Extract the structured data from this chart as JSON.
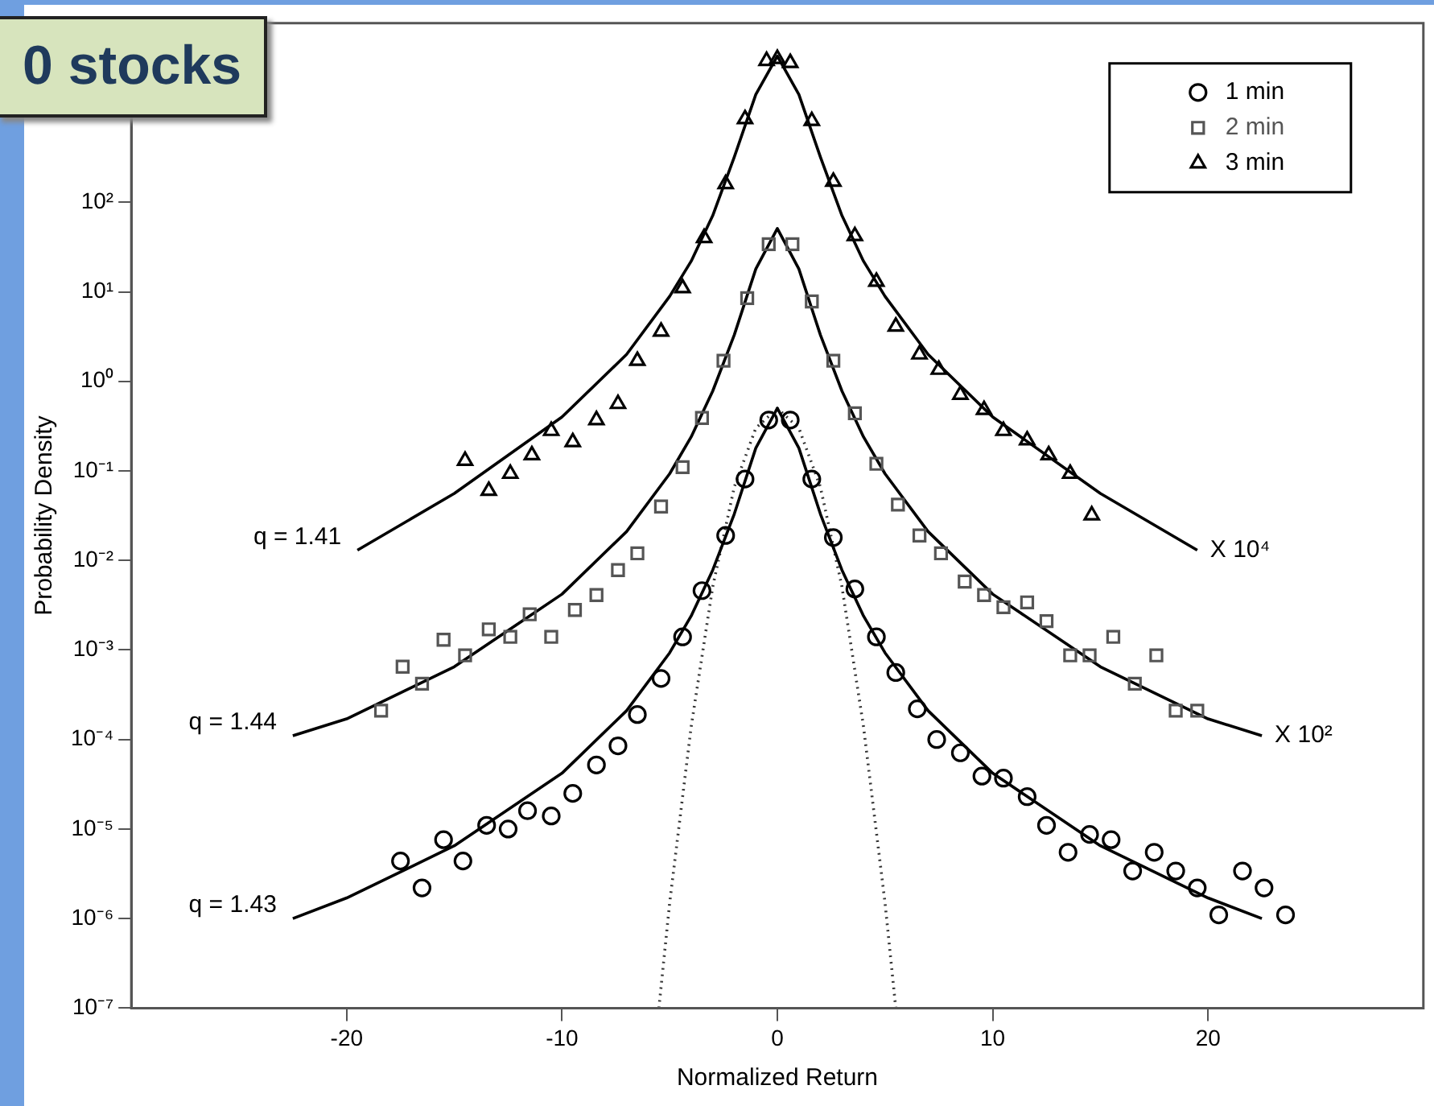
{
  "chart_data": {
    "type": "scatter",
    "title": "0 stocks",
    "xlabel": "Normalized Return",
    "ylabel": "Probability Density",
    "log": "y",
    "xlim": [
      -30,
      30
    ],
    "xticks": [
      -20,
      -10,
      0,
      10,
      20
    ],
    "ylim": [
      1e-07,
      10000
    ],
    "yticks": [
      {
        "value": 1e-07,
        "label": "10⁻⁷"
      },
      {
        "value": 1e-06,
        "label": "10⁻⁶"
      },
      {
        "value": 1e-05,
        "label": "10⁻⁵"
      },
      {
        "value": 0.0001,
        "label": "10⁻⁴"
      },
      {
        "value": 0.001,
        "label": "10⁻³"
      },
      {
        "value": 0.01,
        "label": "10⁻²"
      },
      {
        "value": 0.1,
        "label": "10⁻¹"
      },
      {
        "value": 1,
        "label": "10⁰"
      },
      {
        "value": 10,
        "label": "10¹"
      },
      {
        "value": 100,
        "label": "10²"
      }
    ],
    "grid": false,
    "legend": "top right",
    "series": [
      {
        "name": "1 min",
        "type": "scatter",
        "marker": "circle",
        "color": "#000000",
        "x": [
          -17.5,
          -16.5,
          -15.5,
          -14.6,
          -13.5,
          -12.5,
          -11.6,
          -10.5,
          -9.5,
          -8.4,
          -7.4,
          -6.5,
          -5.4,
          -4.4,
          -3.5,
          -2.4,
          -1.5,
          -0.4,
          0.6,
          1.6,
          2.6,
          3.6,
          4.6,
          5.5,
          6.5,
          7.4,
          8.5,
          9.5,
          10.5,
          11.6,
          12.5,
          13.5,
          14.5,
          15.5,
          16.5,
          17.5,
          18.5,
          19.5,
          20.5,
          21.6,
          22.6,
          23.6
        ],
        "values": [
          4.4e-06,
          2.2e-06,
          7.6e-06,
          4.4e-06,
          1.1e-05,
          1e-05,
          1.6e-05,
          1.4e-05,
          2.5e-05,
          5.2e-05,
          8.5e-05,
          0.00019,
          0.00048,
          0.0014,
          0.0046,
          0.019,
          0.081,
          0.37,
          0.37,
          0.081,
          0.018,
          0.0048,
          0.0014,
          0.00056,
          0.00022,
          0.0001,
          7.1e-05,
          3.9e-05,
          3.7e-05,
          2.3e-05,
          1.1e-05,
          5.5e-06,
          8.7e-06,
          7.6e-06,
          3.4e-06,
          5.5e-06,
          3.4e-06,
          2.2e-06,
          1.1e-06,
          3.4e-06,
          2.2e-06,
          1.1e-06
        ]
      },
      {
        "name": "2 min",
        "type": "scatter",
        "marker": "square",
        "color": "#555555",
        "x": [
          -18.4,
          -17.4,
          -16.5,
          -15.5,
          -14.5,
          -13.4,
          -12.4,
          -11.5,
          -10.5,
          -9.4,
          -8.4,
          -7.4,
          -6.5,
          -5.4,
          -4.4,
          -3.5,
          -2.5,
          -1.4,
          -0.4,
          0.7,
          1.6,
          2.6,
          3.6,
          4.6,
          5.6,
          6.6,
          7.6,
          8.7,
          9.6,
          10.5,
          11.6,
          12.5,
          13.6,
          14.5,
          15.6,
          16.6,
          17.6,
          18.5,
          19.5
        ],
        "values": [
          0.00021,
          0.00065,
          0.00042,
          0.0013,
          0.00087,
          0.0017,
          0.0014,
          0.0025,
          0.0014,
          0.0028,
          0.0041,
          0.0078,
          0.012,
          0.04,
          0.11,
          0.39,
          1.7,
          8.5,
          34,
          34,
          7.8,
          1.7,
          0.44,
          0.12,
          0.042,
          0.019,
          0.012,
          0.0058,
          0.0041,
          0.003,
          0.0034,
          0.0021,
          0.00087,
          0.00087,
          0.0014,
          0.00042,
          0.00087,
          0.00021,
          0.00021
        ]
      },
      {
        "name": "3 min",
        "type": "scatter",
        "marker": "triangle",
        "color": "#000000",
        "x": [
          -14.5,
          -13.4,
          -12.4,
          -11.4,
          -10.5,
          -9.5,
          -8.4,
          -7.4,
          -6.5,
          -5.4,
          -4.4,
          -3.4,
          -2.4,
          -1.5,
          -0.5,
          0,
          0.6,
          1.6,
          2.6,
          3.6,
          4.6,
          5.5,
          6.6,
          7.5,
          8.5,
          9.6,
          10.5,
          11.6,
          12.6,
          13.6,
          14.6
        ],
        "values": [
          0.13,
          0.06,
          0.093,
          0.15,
          0.28,
          0.21,
          0.37,
          0.56,
          1.7,
          3.6,
          11,
          40,
          160,
          850,
          3800,
          4000,
          3600,
          810,
          170,
          42,
          13,
          4.1,
          2.0,
          1.35,
          0.71,
          0.48,
          0.28,
          0.22,
          0.15,
          0.093,
          0.032
        ]
      },
      {
        "type": "line",
        "color": "#000000",
        "line_style": "solid",
        "x": [
          -22.5,
          -20,
          -15,
          -10,
          -7,
          -5,
          -4,
          -3,
          -2,
          -1,
          0,
          1,
          2,
          3,
          4,
          5,
          7,
          10,
          15,
          20,
          22.5
        ],
        "values": [
          1e-06,
          1.7e-06,
          6.5e-06,
          4.2e-05,
          0.00021,
          0.00093,
          0.0024,
          0.0078,
          0.033,
          0.18,
          0.5,
          0.18,
          0.033,
          0.0078,
          0.0024,
          0.00093,
          0.00021,
          4.2e-05,
          6.5e-06,
          1.7e-06,
          1e-06
        ]
      },
      {
        "type": "line",
        "color": "#000000",
        "line_style": "solid",
        "x": [
          -22.5,
          -20,
          -15,
          -10,
          -7,
          -5,
          -4,
          -3,
          -2,
          -1,
          0,
          1,
          2,
          3,
          4,
          5,
          7,
          10,
          15,
          20,
          22.5
        ],
        "values": [
          0.00011,
          0.00017,
          0.00065,
          0.0042,
          0.021,
          0.093,
          0.24,
          0.78,
          3.3,
          18,
          51,
          18,
          3.3,
          0.78,
          0.24,
          0.093,
          0.021,
          0.0042,
          0.00065,
          0.00017,
          0.00011
        ]
      },
      {
        "type": "line",
        "color": "#000000",
        "line_style": "solid",
        "x": [
          -19.5,
          -15,
          -10,
          -7,
          -5,
          -4,
          -3,
          -2,
          -1,
          0,
          1,
          2,
          3,
          4,
          5,
          7,
          10,
          15,
          19.5
        ],
        "values": [
          0.013,
          0.056,
          0.4,
          2.0,
          8.9,
          22,
          71,
          320,
          1600,
          4300,
          1600,
          320,
          71,
          22,
          8.9,
          2.0,
          0.4,
          0.056,
          0.013
        ]
      },
      {
        "type": "line",
        "color": "#333333",
        "line_style": "dotted",
        "x": [
          -5.5,
          -5,
          -4,
          -3,
          -2,
          -1,
          0,
          1,
          2,
          3,
          4,
          5,
          5.5
        ],
        "values": [
          1e-07,
          1.5e-06,
          0.00014,
          0.0051,
          0.066,
          0.3,
          0.5,
          0.3,
          0.066,
          0.0051,
          0.00014,
          1.5e-06,
          1e-07
        ]
      }
    ],
    "annotations": [
      {
        "text": "q = 1.41",
        "x": -19.5,
        "y": 0.013
      },
      {
        "text": "q = 1.44",
        "x": -22.5,
        "y": 0.00011
      },
      {
        "text": "q = 1.43",
        "x": -22.5,
        "y": 1e-06
      },
      {
        "text": "X 10⁴",
        "x": 19.5,
        "y": 0.013
      },
      {
        "text": "X 10²",
        "x": 22.5,
        "y": 0.00011
      }
    ]
  }
}
